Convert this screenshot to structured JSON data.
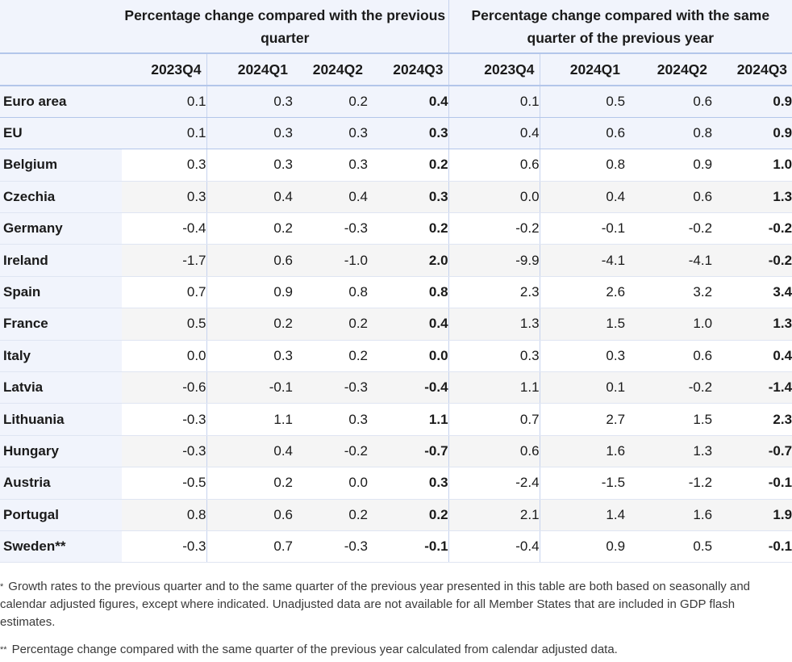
{
  "table": {
    "group_headers": [
      "Percentage change compared with the previous quarter",
      "Percentage change compared with the same quarter of the previous year"
    ],
    "periods": [
      "2023Q4",
      "2024Q1",
      "2024Q2",
      "2024Q3",
      "2023Q4",
      "2024Q1",
      "2024Q2",
      "2024Q3"
    ],
    "rows": [
      {
        "country": "Euro area",
        "values": [
          "0.1",
          "0.3",
          "0.2",
          "0.4",
          "0.1",
          "0.5",
          "0.6",
          "0.9"
        ]
      },
      {
        "country": "EU",
        "values": [
          "0.1",
          "0.3",
          "0.3",
          "0.3",
          "0.4",
          "0.6",
          "0.8",
          "0.9"
        ]
      },
      {
        "country": "Belgium",
        "values": [
          "0.3",
          "0.3",
          "0.3",
          "0.2",
          "0.6",
          "0.8",
          "0.9",
          "1.0"
        ]
      },
      {
        "country": "Czechia",
        "values": [
          "0.3",
          "0.4",
          "0.4",
          "0.3",
          "0.0",
          "0.4",
          "0.6",
          "1.3"
        ]
      },
      {
        "country": "Germany",
        "values": [
          "-0.4",
          "0.2",
          "-0.3",
          "0.2",
          "-0.2",
          "-0.1",
          "-0.2",
          "-0.2"
        ]
      },
      {
        "country": "Ireland",
        "values": [
          "-1.7",
          "0.6",
          "-1.0",
          "2.0",
          "-9.9",
          "-4.1",
          "-4.1",
          "-0.2"
        ]
      },
      {
        "country": "Spain",
        "values": [
          "0.7",
          "0.9",
          "0.8",
          "0.8",
          "2.3",
          "2.6",
          "3.2",
          "3.4"
        ]
      },
      {
        "country": "France",
        "values": [
          "0.5",
          "0.2",
          "0.2",
          "0.4",
          "1.3",
          "1.5",
          "1.0",
          "1.3"
        ]
      },
      {
        "country": "Italy",
        "values": [
          "0.0",
          "0.3",
          "0.2",
          "0.0",
          "0.3",
          "0.3",
          "0.6",
          "0.4"
        ]
      },
      {
        "country": "Latvia",
        "values": [
          "-0.6",
          "-0.1",
          "-0.3",
          "-0.4",
          "1.1",
          "0.1",
          "-0.2",
          "-1.4"
        ]
      },
      {
        "country": "Lithuania",
        "values": [
          "-0.3",
          "1.1",
          "0.3",
          "1.1",
          "0.7",
          "2.7",
          "1.5",
          "2.3"
        ]
      },
      {
        "country": "Hungary",
        "values": [
          "-0.3",
          "0.4",
          "-0.2",
          "-0.7",
          "0.6",
          "1.6",
          "1.3",
          "-0.7"
        ]
      },
      {
        "country": "Austria",
        "values": [
          "-0.5",
          "0.2",
          "0.0",
          "0.3",
          "-2.4",
          "-1.5",
          "-1.2",
          "-0.1"
        ]
      },
      {
        "country": "Portugal",
        "values": [
          "0.8",
          "0.6",
          "0.2",
          "0.2",
          "2.1",
          "1.4",
          "1.6",
          "1.9"
        ]
      },
      {
        "country": "Sweden**",
        "values": [
          "-0.3",
          "0.7",
          "-0.3",
          "-0.1",
          "-0.4",
          "0.9",
          "0.5",
          "-0.1"
        ]
      }
    ]
  },
  "notes": {
    "note1_marker": "*",
    "note1_text": "Growth rates to the previous quarter and to the same quarter of the previous year presented in this table are both based on seasonally and calendar adjusted figures, except where indicated. Unadjusted data are not available for all Member States that are included in GDP flash estimates.",
    "note2_marker": "**",
    "note2_text": "Percentage change compared with the same quarter of the previous year calculated from calendar adjusted data."
  }
}
